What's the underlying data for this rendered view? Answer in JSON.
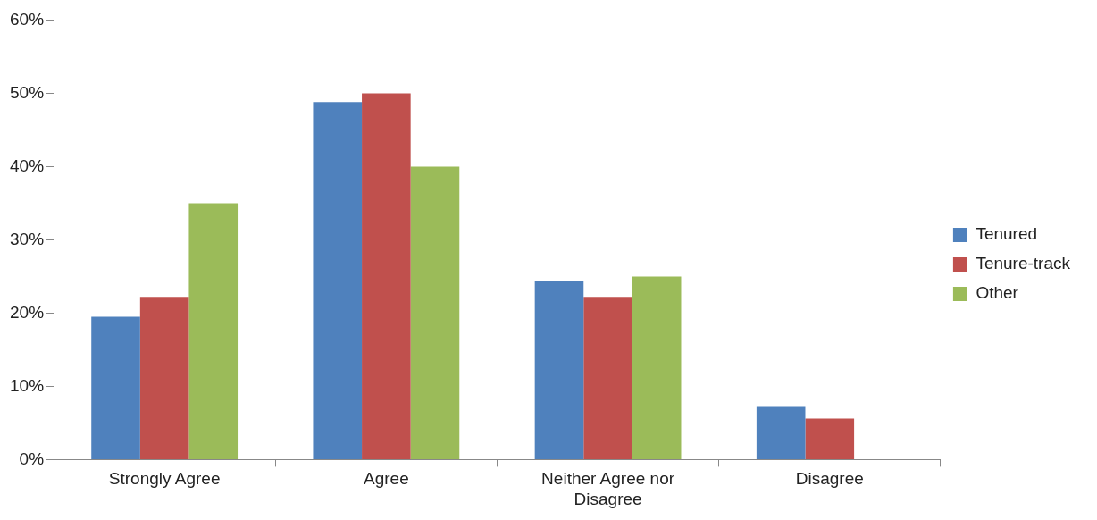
{
  "chart_data": {
    "type": "bar",
    "categories": [
      "Strongly Agree",
      "Agree",
      "Neither Agree nor Disagree",
      "Disagree"
    ],
    "series": [
      {
        "name": "Tenured",
        "color": "#4f81bd",
        "values": [
          19.5,
          48.8,
          24.4,
          7.3
        ]
      },
      {
        "name": "Tenure-track",
        "color": "#c0504d",
        "values": [
          22.2,
          50,
          22.2,
          5.6
        ]
      },
      {
        "name": "Other",
        "color": "#9bbb59",
        "values": [
          35,
          40,
          25,
          0
        ]
      }
    ],
    "ylim": [
      0,
      60
    ],
    "yticks": [
      {
        "value": 0,
        "label": "0%"
      },
      {
        "value": 10,
        "label": "10%"
      },
      {
        "value": 20,
        "label": "20%"
      },
      {
        "value": 30,
        "label": "30%"
      },
      {
        "value": 40,
        "label": "40%"
      },
      {
        "value": 50,
        "label": "50%"
      },
      {
        "value": 60,
        "label": "60%"
      }
    ],
    "grid": false,
    "legend": "right"
  }
}
